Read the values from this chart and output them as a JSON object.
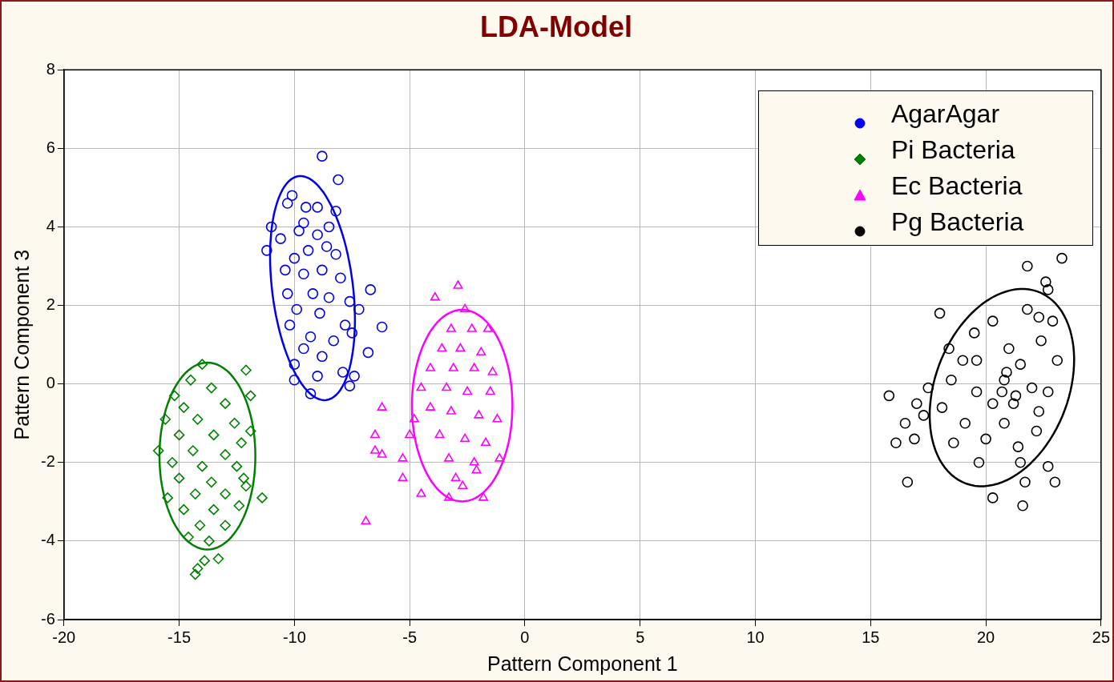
{
  "chart_data": {
    "type": "scatter",
    "title": "LDA-Model",
    "xlabel": "Pattern Component 1",
    "ylabel": "Pattern Component 3",
    "xlim": [
      -20,
      25
    ],
    "xticks": [
      -20,
      -15,
      -10,
      -5,
      0,
      5,
      10,
      15,
      20,
      25
    ],
    "ylim": [
      -6,
      8
    ],
    "yticks": [
      -6,
      -4,
      -2,
      0,
      2,
      4,
      6,
      8
    ],
    "grid": true,
    "legend": "top right",
    "series": [
      {
        "name": "AgarAgar",
        "color": "#0000ee",
        "marker": "circle",
        "x": [
          -8.8,
          -8.1,
          -10.1,
          -10.3,
          -9.5,
          -9.0,
          -8.2,
          -11.0,
          -10.6,
          -9.8,
          -9.0,
          -8.6,
          -9.4,
          -10.0,
          -8.2,
          -11.2,
          -10.4,
          -9.6,
          -8.8,
          -8.0,
          -10.3,
          -9.2,
          -8.5,
          -7.6,
          -6.7,
          -9.9,
          -8.9,
          -7.8,
          -6.2,
          -10.2,
          -9.3,
          -8.3,
          -7.5,
          -9.6,
          -8.8,
          -6.8,
          -10.0,
          -9.0,
          -7.9,
          -7.4,
          -10.0,
          -7.6,
          -9.3,
          -7.2,
          -8.5,
          -9.6
        ],
        "values": [
          5.8,
          5.2,
          4.8,
          4.6,
          4.5,
          4.5,
          4.4,
          4.0,
          3.7,
          3.9,
          3.8,
          3.5,
          3.4,
          3.2,
          3.3,
          3.4,
          2.9,
          2.8,
          2.9,
          2.7,
          2.3,
          2.3,
          2.2,
          2.1,
          2.4,
          1.9,
          1.8,
          1.5,
          1.45,
          1.5,
          1.2,
          1.1,
          1.3,
          0.9,
          0.7,
          0.8,
          0.5,
          0.2,
          0.3,
          0.2,
          0.1,
          -0.05,
          -0.25,
          1.9,
          4.0,
          4.1
        ]
      },
      {
        "name": "Pi Bacteria",
        "color": "#008000",
        "marker": "diamond",
        "x": [
          -14.0,
          -12.1,
          -14.5,
          -15.2,
          -13.6,
          -11.9,
          -14.8,
          -13.0,
          -15.6,
          -14.2,
          -12.6,
          -15.0,
          -13.5,
          -12.3,
          -15.9,
          -14.4,
          -13.0,
          -15.3,
          -14.0,
          -12.5,
          -15.0,
          -13.6,
          -12.2,
          -15.5,
          -14.3,
          -13.0,
          -11.4,
          -14.8,
          -13.5,
          -12.4,
          -14.1,
          -13.0,
          -14.6,
          -13.7,
          -13.9,
          -13.3,
          -14.2,
          -14.3,
          -12.1,
          -11.9
        ],
        "values": [
          0.5,
          0.35,
          0.1,
          -0.3,
          -0.1,
          -0.3,
          -0.6,
          -0.5,
          -0.9,
          -0.9,
          -1.0,
          -1.3,
          -1.3,
          -1.5,
          -1.7,
          -1.7,
          -1.8,
          -2.0,
          -2.1,
          -2.1,
          -2.4,
          -2.5,
          -2.4,
          -2.9,
          -2.8,
          -2.8,
          -2.9,
          -3.2,
          -3.2,
          -3.1,
          -3.6,
          -3.6,
          -3.9,
          -4.0,
          -4.5,
          -4.45,
          -4.7,
          -4.85,
          -2.6,
          -1.2
        ]
      },
      {
        "name": "Ec Bacteria",
        "color": "#ff00ff",
        "marker": "triangle",
        "x": [
          -2.9,
          -3.9,
          -2.6,
          -3.2,
          -2.3,
          -1.6,
          -3.6,
          -2.8,
          -1.9,
          -4.1,
          -3.1,
          -2.2,
          -1.4,
          -4.5,
          -3.4,
          -2.5,
          -1.5,
          -6.2,
          -4.8,
          -4.1,
          -3.2,
          -2.0,
          -1.2,
          -6.5,
          -5.0,
          -3.7,
          -2.6,
          -1.7,
          -6.5,
          -6.2,
          -5.3,
          -3.3,
          -2.2,
          -1.1,
          -5.3,
          -4.5,
          -3.0,
          -2.1,
          -3.3,
          -1.8,
          -6.9,
          -2.7
        ],
        "values": [
          2.5,
          2.2,
          1.9,
          1.4,
          1.4,
          1.4,
          0.9,
          0.9,
          0.8,
          0.4,
          0.4,
          0.4,
          0.3,
          -0.1,
          -0.1,
          -0.2,
          -0.2,
          -0.6,
          -0.9,
          -0.6,
          -0.7,
          -0.8,
          -0.9,
          -1.3,
          -1.3,
          -1.3,
          -1.4,
          -1.5,
          -1.7,
          -1.8,
          -1.9,
          -1.9,
          -2.0,
          -1.9,
          -2.4,
          -2.8,
          -2.4,
          -2.2,
          -2.9,
          -2.9,
          -3.5,
          -2.6
        ]
      },
      {
        "name": "Pg Bacteria",
        "color": "#000000",
        "marker": "circle",
        "x": [
          23.3,
          21.8,
          22.6,
          22.7,
          21.8,
          22.3,
          18.0,
          20.3,
          19.5,
          22.9,
          18.4,
          21.0,
          22.4,
          19.0,
          19.6,
          21.5,
          23.1,
          18.5,
          20.8,
          22.0,
          17.5,
          19.6,
          21.3,
          22.7,
          15.8,
          17.0,
          18.1,
          20.3,
          22.3,
          16.5,
          17.3,
          19.1,
          20.8,
          22.2,
          16.9,
          18.6,
          20.0,
          21.4,
          16.1,
          19.7,
          21.5,
          22.7,
          16.6,
          20.3,
          21.7,
          21.6,
          23.0,
          20.7,
          20.9,
          21.2
        ],
        "values": [
          3.2,
          3.0,
          2.6,
          2.4,
          1.9,
          1.7,
          1.8,
          1.6,
          1.3,
          1.6,
          0.9,
          0.9,
          1.1,
          0.6,
          0.6,
          0.5,
          0.6,
          0.1,
          0.1,
          -0.1,
          -0.1,
          -0.2,
          -0.3,
          -0.2,
          -0.3,
          -0.5,
          -0.6,
          -0.5,
          -0.7,
          -1.0,
          -0.8,
          -1.0,
          -1.0,
          -1.2,
          -1.4,
          -1.5,
          -1.4,
          -1.6,
          -1.5,
          -2.0,
          -2.0,
          -2.1,
          -2.5,
          -2.9,
          -2.5,
          -3.1,
          -2.5,
          -0.2,
          0.3,
          -0.5
        ]
      }
    ]
  }
}
